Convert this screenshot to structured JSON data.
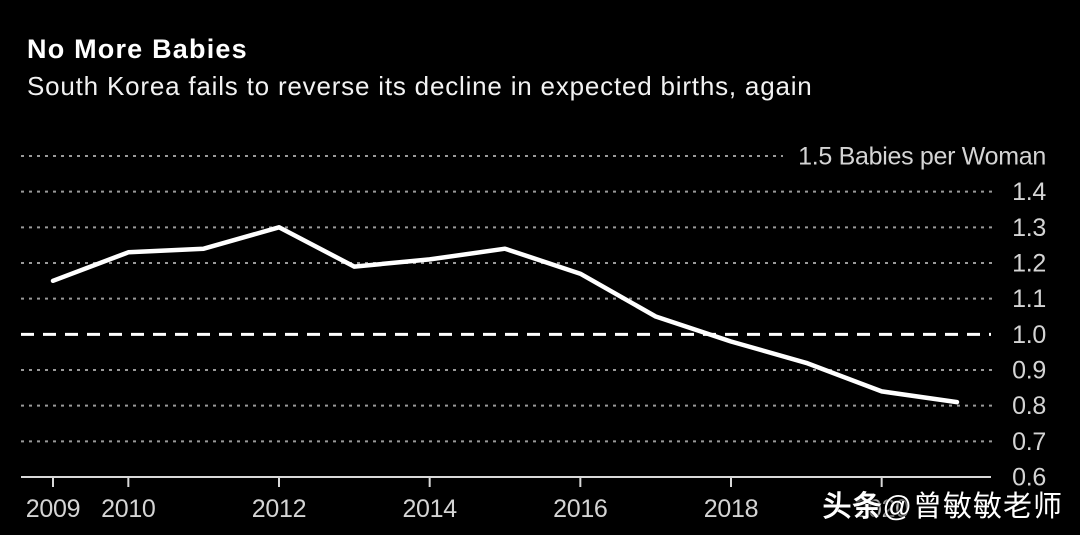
{
  "header": {
    "title": "No More Babies",
    "subtitle": "South Korea fails to reverse its decline in expected births, again"
  },
  "watermark": {
    "brand": "头条",
    "handle": "@曾敏敏老师"
  },
  "colors": {
    "background": "#000000",
    "title_text": "#ffffff",
    "axis_text": "#d4d4d4",
    "gridline_dotted": "#9a9a9a",
    "axis_line": "#d9d9d9",
    "reference_line": "#ffffff",
    "series_line": "#ffffff"
  },
  "chart_data": {
    "type": "line",
    "title": "No More Babies",
    "subtitle": "South Korea fails to reverse its decline in expected births, again",
    "ylabel": "Babies per Woman",
    "xlabel": "",
    "x": [
      2009,
      2010,
      2011,
      2012,
      2013,
      2014,
      2015,
      2016,
      2017,
      2018,
      2019,
      2020,
      2021
    ],
    "series": [
      {
        "name": "Expected births per woman",
        "values": [
          1.15,
          1.23,
          1.24,
          1.3,
          1.19,
          1.21,
          1.24,
          1.17,
          1.05,
          0.98,
          0.92,
          0.84,
          0.81
        ]
      }
    ],
    "ylim": [
      0.6,
      1.5
    ],
    "yticks": [
      0.6,
      0.7,
      0.8,
      0.9,
      1.0,
      1.1,
      1.2,
      1.3,
      1.4,
      1.5
    ],
    "ytick_labels": [
      "0.6",
      "0.7",
      "0.8",
      "0.9",
      "1.0",
      "1.1",
      "1.2",
      "1.3",
      "1.4",
      "1.5 Babies per Woman"
    ],
    "xticks": [
      2009,
      2010,
      2012,
      2014,
      2016,
      2018,
      2020
    ],
    "xtick_labels": [
      "2009",
      "2010",
      "2012",
      "2014",
      "2016",
      "2018",
      "2020"
    ],
    "reference_line_y": 1.0,
    "grid": "horizontal-dotted",
    "legend_position": "none"
  }
}
